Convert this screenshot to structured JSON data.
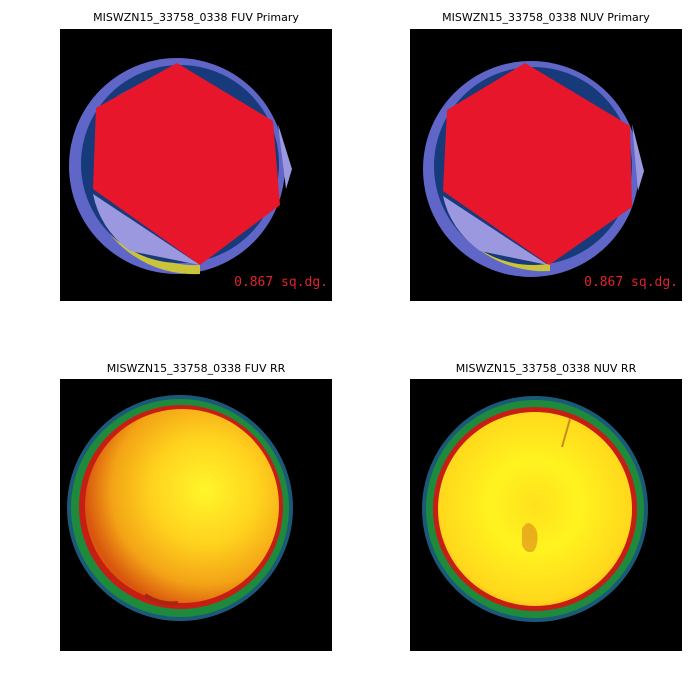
{
  "panels": {
    "fuv_primary": {
      "title": "MISWZN15_33758_0338 FUV Primary",
      "area": "0.867 sq.dg."
    },
    "nuv_primary": {
      "title": "MISWZN15_33758_0338 NUV Primary",
      "area": "0.867 sq.dg."
    },
    "fuv_rr": {
      "title": "MISWZN15_33758_0338 FUV RR"
    },
    "nuv_rr": {
      "title": "MISWZN15_33758_0338 NUV RR"
    }
  },
  "colors": {
    "background": "#000000",
    "coverage_outer": "#5f66c8",
    "coverage_inner": "#173a7a",
    "hexagon": "#e8162b",
    "overlap_light": "#9c98e0",
    "edge_yellow": "#c9c43a",
    "area_text": "#e0222f",
    "rr_ring_green": "#1e8a3c",
    "rr_ring_red": "#c71e14",
    "rr_center": "#fff018"
  }
}
